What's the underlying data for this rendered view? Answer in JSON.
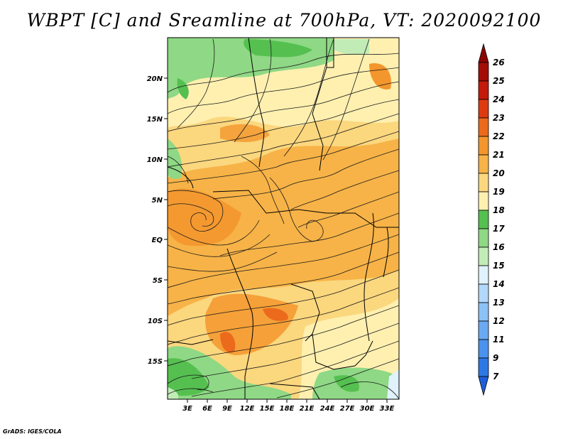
{
  "title": "WBPT [C] and Sreamline at 700hPa, VT: 2020092100",
  "footer": "GrADS: IGES/COLA",
  "map": {
    "lat_labels": [
      "20N",
      "15N",
      "10N",
      "5N",
      "EQ",
      "5S",
      "10S",
      "15S"
    ],
    "lon_labels": [
      "3E",
      "6E",
      "9E",
      "12E",
      "15E",
      "18E",
      "21E",
      "24E",
      "27E",
      "30E",
      "33E"
    ]
  },
  "colorbar": {
    "levels": [
      "7",
      "9",
      "11",
      "12",
      "13",
      "14",
      "15",
      "16",
      "17",
      "18",
      "19",
      "20",
      "21",
      "22",
      "23",
      "24",
      "25",
      "26"
    ],
    "colors": [
      "#1e5fd8",
      "#2e78e6",
      "#4a92ee",
      "#6aaaf2",
      "#8cc2f6",
      "#b2d8fa",
      "#e0f2fb",
      "#c2ecb6",
      "#8fd885",
      "#55c050",
      "#fff0b0",
      "#fbd77e",
      "#f7b347",
      "#f3962d",
      "#ec6a1c",
      "#de3a12",
      "#c41a0a",
      "#a40d05",
      "#8a0502"
    ]
  }
}
